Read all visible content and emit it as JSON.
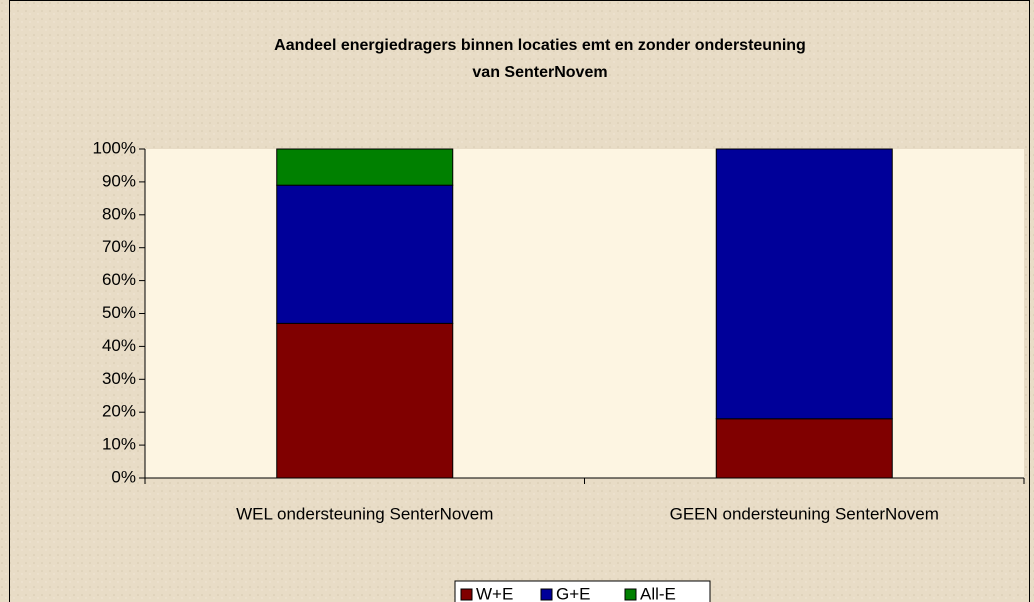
{
  "chart_data": {
    "type": "stacked_bar",
    "title": [
      "Aandeel energiedragers binnen locaties emt en zonder ondersteuning",
      "van SenterNovem"
    ],
    "categories": [
      "WEL ondersteuning SenterNovem",
      "GEEN ondersteuning SenterNovem"
    ],
    "series": [
      {
        "name": "W+E",
        "color": "#800000",
        "values": [
          47,
          18
        ]
      },
      {
        "name": "G+E",
        "color": "#000099",
        "values": [
          42,
          82
        ]
      },
      {
        "name": "All-E",
        "color": "#008000",
        "values": [
          11,
          0
        ]
      }
    ],
    "ylim": [
      0,
      100
    ],
    "yticks": [
      {
        "value": 0,
        "label": "0%"
      },
      {
        "value": 10,
        "label": "10%"
      },
      {
        "value": 20,
        "label": "20%"
      },
      {
        "value": 30,
        "label": "30%"
      },
      {
        "value": 40,
        "label": "40%"
      },
      {
        "value": 50,
        "label": "50%"
      },
      {
        "value": 60,
        "label": "60%"
      },
      {
        "value": 70,
        "label": "70%"
      },
      {
        "value": 80,
        "label": "80%"
      },
      {
        "value": 90,
        "label": "90%"
      },
      {
        "value": 100,
        "label": "100%"
      }
    ],
    "legend": "bottom"
  }
}
